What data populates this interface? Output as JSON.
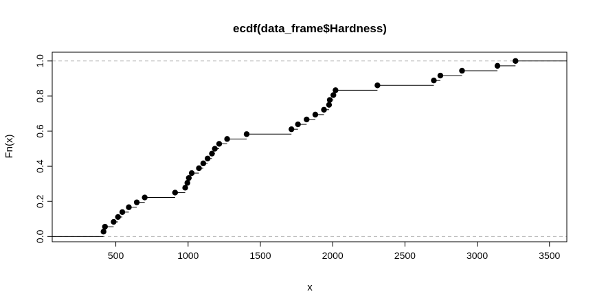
{
  "chart_data": {
    "type": "scatter",
    "subtype": "ecdf_step",
    "title": "ecdf(data_frame$Hardness)",
    "xlabel": "x",
    "ylabel": "Fn(x)",
    "xlim": [
      60,
      3620
    ],
    "ylim": [
      -0.03,
      1.05
    ],
    "x_ticks": [
      500,
      1000,
      1500,
      2000,
      2500,
      3000,
      3500
    ],
    "y_ticks": [
      0.0,
      0.2,
      0.4,
      0.6,
      0.8,
      1.0
    ],
    "x_tick_labels": [
      "500",
      "1000",
      "1500",
      "2000",
      "2500",
      "3000",
      "3500"
    ],
    "y_tick_labels": [
      "0.0",
      "0.2",
      "0.4",
      "0.6",
      "0.8",
      "1.0"
    ],
    "reference_lines_y": [
      0,
      1
    ],
    "grid": false,
    "legend": "none",
    "colors": {
      "points": "#000000",
      "steps": "#000000",
      "reference": "#b3b3b3"
    },
    "points": [
      {
        "x": 415,
        "y": 0.0278
      },
      {
        "x": 425,
        "y": 0.0556
      },
      {
        "x": 485,
        "y": 0.0833
      },
      {
        "x": 515,
        "y": 0.1111
      },
      {
        "x": 545,
        "y": 0.1389
      },
      {
        "x": 590,
        "y": 0.1667
      },
      {
        "x": 645,
        "y": 0.1944
      },
      {
        "x": 700,
        "y": 0.2222
      },
      {
        "x": 910,
        "y": 0.25
      },
      {
        "x": 980,
        "y": 0.2778
      },
      {
        "x": 995,
        "y": 0.3056
      },
      {
        "x": 1005,
        "y": 0.3333
      },
      {
        "x": 1025,
        "y": 0.3611
      },
      {
        "x": 1075,
        "y": 0.3889
      },
      {
        "x": 1105,
        "y": 0.4167
      },
      {
        "x": 1135,
        "y": 0.4444
      },
      {
        "x": 1165,
        "y": 0.4722
      },
      {
        "x": 1185,
        "y": 0.5
      },
      {
        "x": 1215,
        "y": 0.5278
      },
      {
        "x": 1270,
        "y": 0.5556
      },
      {
        "x": 1405,
        "y": 0.5833
      },
      {
        "x": 1715,
        "y": 0.6111
      },
      {
        "x": 1760,
        "y": 0.6389
      },
      {
        "x": 1820,
        "y": 0.6667
      },
      {
        "x": 1880,
        "y": 0.6944
      },
      {
        "x": 1940,
        "y": 0.7222
      },
      {
        "x": 1975,
        "y": 0.75
      },
      {
        "x": 1980,
        "y": 0.7778
      },
      {
        "x": 2005,
        "y": 0.8056
      },
      {
        "x": 2020,
        "y": 0.8333
      },
      {
        "x": 2310,
        "y": 0.8611
      },
      {
        "x": 2700,
        "y": 0.8889
      },
      {
        "x": 2745,
        "y": 0.9167
      },
      {
        "x": 2895,
        "y": 0.9444
      },
      {
        "x": 3140,
        "y": 0.9722
      },
      {
        "x": 3265,
        "y": 1.0
      }
    ]
  }
}
